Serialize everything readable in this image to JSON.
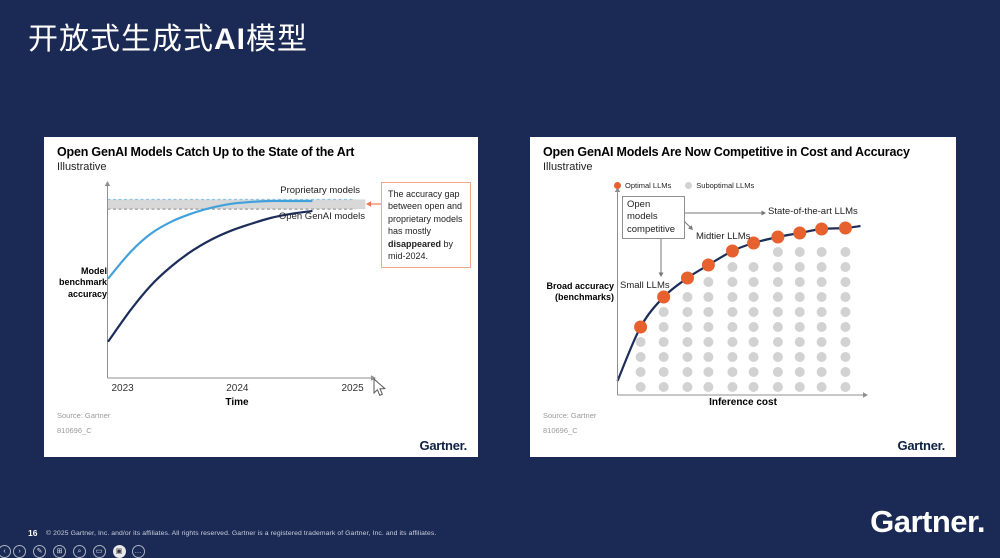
{
  "slide": {
    "title_prefix": "开放式生成式",
    "title_ai": "AI",
    "title_suffix": "模型",
    "page_number": "16",
    "copyright": "© 2025 Gartner, Inc. and/or its affiliates. All rights reserved. Gartner is a registered trademark of Gartner, Inc. and its affiliates.",
    "brand_logo": "Gartner.",
    "background_color": "#1b2a54"
  },
  "left_card": {
    "title": "Open GenAI Models Catch Up to the State of the Art",
    "subtitle": "Illustrative",
    "source_line1": "Source: Gartner",
    "source_line2": "810696_C",
    "logo": "Gartner.",
    "annotation": {
      "before": "The accuracy gap between open and proprietary models has mostly ",
      "bold": "disappeared",
      "after": " by mid-2024.",
      "border_color": "#f2a98a",
      "arrow_color": "#e87a52"
    }
  },
  "right_card": {
    "title": "Open GenAI Models Are Now Competitive in Cost and Accuracy",
    "subtitle": "Illustrative",
    "source_line1": "Source: Gartner",
    "source_line2": "810696_C",
    "logo": "Gartner.",
    "labels": {
      "open_models_competitive": "Open models competitive",
      "sota": "State-of-the-art LLMs",
      "midtier": "Midtier LLMs",
      "small": "Small LLMs"
    }
  },
  "chart_data": [
    {
      "type": "line",
      "title": "Open GenAI Models Catch Up to the State of the Art",
      "subtitle": "Illustrative",
      "xlabel": "Time",
      "ylabel": "Model benchmark accuracy",
      "x_ticks": [
        {
          "label": "2023",
          "x": 0.057
        },
        {
          "label": "2024",
          "x": 0.49
        },
        {
          "label": "2025",
          "x": 0.925
        }
      ],
      "axis_color": "#8f8f8f",
      "series": [
        {
          "name": "Proprietary models",
          "color": "#41a1dc",
          "points": [
            [
              0.004,
              0.518
            ],
            [
              0.087,
              0.653
            ],
            [
              0.162,
              0.746
            ],
            [
              0.238,
              0.808
            ],
            [
              0.313,
              0.85
            ],
            [
              0.389,
              0.881
            ],
            [
              0.464,
              0.902
            ],
            [
              0.54,
              0.912
            ],
            [
              0.615,
              0.917
            ],
            [
              0.691,
              0.917
            ],
            [
              0.77,
              0.917
            ]
          ]
        },
        {
          "name": "Open GenAI models",
          "color": "#1c2d5a",
          "points": [
            [
              0.004,
              0.192
            ],
            [
              0.087,
              0.352
            ],
            [
              0.162,
              0.477
            ],
            [
              0.238,
              0.575
            ],
            [
              0.313,
              0.653
            ],
            [
              0.389,
              0.715
            ],
            [
              0.464,
              0.762
            ],
            [
              0.54,
              0.798
            ],
            [
              0.615,
              0.829
            ],
            [
              0.691,
              0.85
            ],
            [
              0.77,
              0.865
            ]
          ]
        }
      ],
      "gap_band": {
        "y_from": 0.875,
        "y_to": 0.925,
        "x_to": 0.973,
        "color": "#d8d8d8"
      },
      "dashed_levels": [
        {
          "y": 0.925,
          "color": "#8ec4e8"
        },
        {
          "y": 0.875,
          "color": "#9b9b9b"
        }
      ]
    },
    {
      "type": "scatter",
      "title": "Open GenAI Models Are Now Competitive in Cost and Accuracy",
      "subtitle": "Illustrative",
      "xlabel": "Inference cost",
      "ylabel": "Broad accuracy (benchmarks)",
      "axis_color": "#8f8f8f",
      "annotation_arrow_color": "#777777",
      "legend": [
        {
          "label": "Optimal LLMs",
          "color": "#e7612e"
        },
        {
          "label": "Suboptimal LLMs",
          "color": "#d2d2d2"
        }
      ],
      "series": [
        {
          "name": "Optimal LLMs",
          "color": "#e7612e",
          "points": [
            [
              0.095,
              0.34
            ],
            [
              0.19,
              0.49
            ],
            [
              0.288,
              0.585
            ],
            [
              0.374,
              0.65
            ],
            [
              0.473,
              0.72
            ],
            [
              0.56,
              0.76
            ],
            [
              0.66,
              0.79
            ],
            [
              0.75,
              0.81
            ],
            [
              0.84,
              0.83
            ],
            [
              0.938,
              0.835
            ]
          ]
        },
        {
          "name": "Suboptimal LLMs",
          "color": "#d2d2d2",
          "grid_rows": [
            0.04,
            0.115,
            0.19,
            0.265,
            0.34,
            0.415,
            0.49,
            0.565,
            0.64,
            0.715
          ],
          "rule": "grid point shown only below the optimal curve"
        }
      ],
      "curve": {
        "color": "#1c2d5a",
        "start": [
          0.0,
          0.07
        ],
        "end": [
          1.0,
          0.845
        ]
      }
    }
  ],
  "presenter_bar": {
    "icons": [
      {
        "name": "previous-slide",
        "glyph": "‹",
        "filled": false
      },
      {
        "name": "next-slide",
        "glyph": "›",
        "filled": false
      },
      {
        "name": "pen-tool",
        "glyph": "✎",
        "filled": false
      },
      {
        "name": "all-slides-grid",
        "glyph": "⊞",
        "filled": false
      },
      {
        "name": "zoom-magnifier",
        "glyph": "⌕",
        "filled": false
      },
      {
        "name": "captions",
        "glyph": "▭",
        "filled": false
      },
      {
        "name": "camera",
        "glyph": "▣",
        "filled": true
      },
      {
        "name": "more-options",
        "glyph": "…",
        "filled": false
      }
    ]
  }
}
